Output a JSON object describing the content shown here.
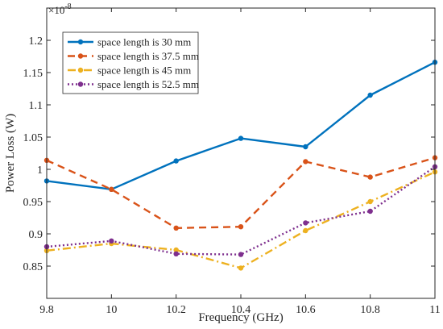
{
  "chart_data": {
    "type": "line",
    "title": "",
    "xlabel": "Frequency (GHz)",
    "ylabel": "Power Loss (W)",
    "y_exponent_label": "×10",
    "y_exponent_power": "-8",
    "x": [
      9.8,
      10.0,
      10.2,
      10.4,
      10.6,
      10.8,
      11.0
    ],
    "x_tick_labels": [
      "9.8",
      "10",
      "10.2",
      "10.4",
      "10.6",
      "10.8",
      "11"
    ],
    "xlim": [
      9.8,
      11.0
    ],
    "y_ticks": [
      0.85,
      0.9,
      0.95,
      1.0,
      1.05,
      1.1,
      1.15,
      1.2
    ],
    "y_tick_labels": [
      "0.85",
      "0.9",
      "0.95",
      "1",
      "1.05",
      "1.1",
      "1.15",
      "1.2"
    ],
    "ylim": [
      0.8,
      1.25
    ],
    "grid": false,
    "legend_position": "top-left",
    "series": [
      {
        "name": "space length is 30 mm",
        "color": "#0072BD",
        "dash": "solid",
        "values": [
          0.982,
          0.969,
          1.013,
          1.048,
          1.035,
          1.115,
          1.166
        ]
      },
      {
        "name": "space length is 37.5 mm",
        "color": "#D95319",
        "dash": "dashed",
        "values": [
          1.014,
          0.969,
          0.909,
          0.911,
          1.012,
          0.988,
          1.018
        ]
      },
      {
        "name": "space length is 45 mm",
        "color": "#EDB120",
        "dash": "dashdot",
        "values": [
          0.874,
          0.885,
          0.875,
          0.847,
          0.905,
          0.95,
          0.996
        ]
      },
      {
        "name": "space length is 52.5 mm",
        "color": "#7E2F8E",
        "dash": "dotted",
        "values": [
          0.88,
          0.889,
          0.869,
          0.868,
          0.917,
          0.935,
          1.004
        ]
      }
    ]
  }
}
